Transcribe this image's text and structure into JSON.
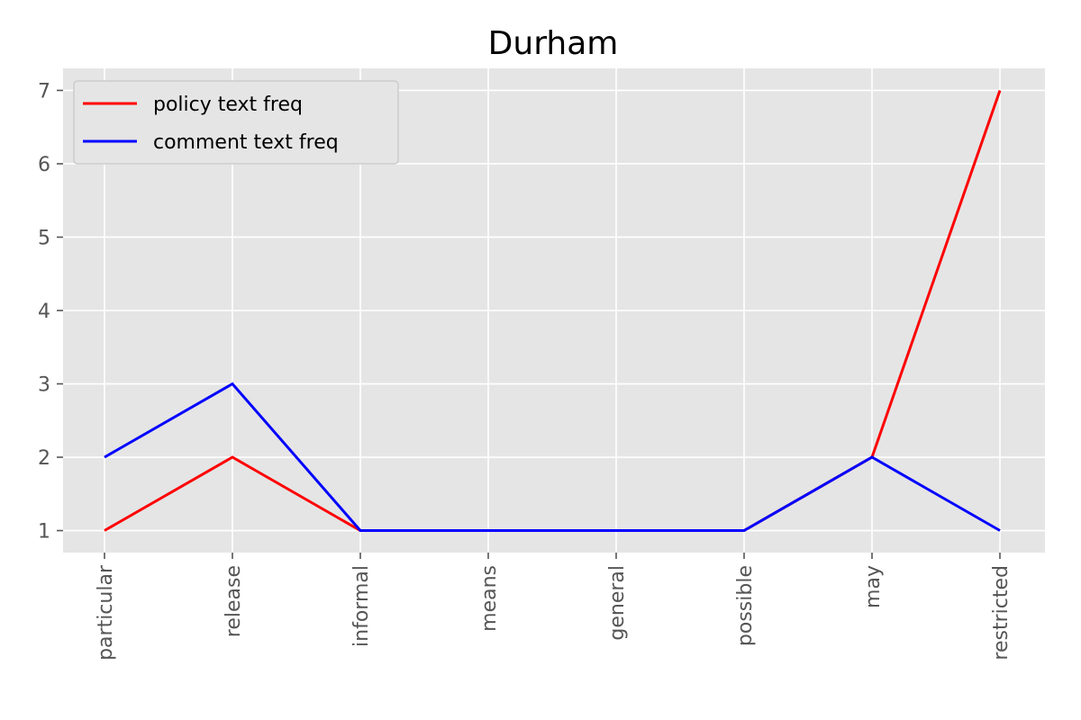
{
  "chart_data": {
    "type": "line",
    "title": "Durham",
    "xlabel": "",
    "ylabel": "",
    "categories": [
      "particular",
      "release",
      "informal",
      "means",
      "general",
      "possible",
      "may",
      "restricted"
    ],
    "series": [
      {
        "name": "policy text freq",
        "color": "#ff0000",
        "values": [
          1,
          2,
          1,
          1,
          1,
          1,
          2,
          7
        ]
      },
      {
        "name": "comment text freq",
        "color": "#0000ff",
        "values": [
          2,
          3,
          1,
          1,
          1,
          1,
          2,
          1
        ]
      }
    ],
    "yticks": [
      1,
      2,
      3,
      4,
      5,
      6,
      7
    ],
    "ylim": [
      0.7,
      7.3
    ],
    "grid": true,
    "legend_position": "top-left",
    "style": "ggplot",
    "background_color": "#e5e5e5"
  }
}
